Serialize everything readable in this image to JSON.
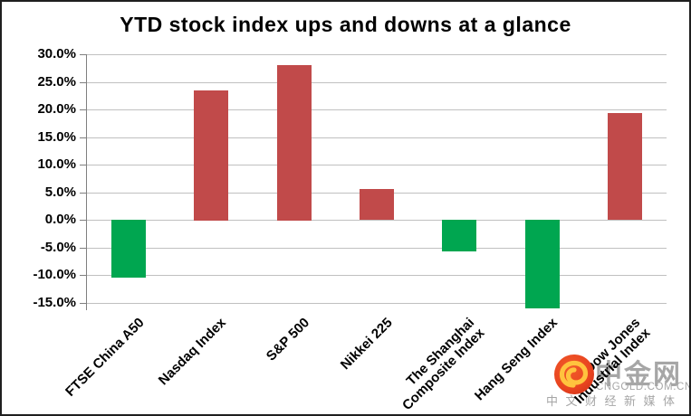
{
  "window": {
    "background": "#ffffff",
    "border_color": "#1f1f1f"
  },
  "chart_data": {
    "type": "bar",
    "title": "YTD stock index ups and downs at a glance",
    "categories": [
      "FTSE China A50",
      "Nasdaq Index",
      "S&P 500",
      "Nikkei 225",
      "The Shanghai\nComposite Index",
      "Hang Seng Index",
      "Dow Jones\nIndustrial Index"
    ],
    "values": [
      -10.5,
      23.5,
      28.1,
      5.6,
      -5.7,
      -16.0,
      19.3
    ],
    "unit": "%",
    "xlabel": "",
    "ylabel": "",
    "y_ticks": [
      30,
      25,
      20,
      15,
      10,
      5,
      0,
      -5,
      -10,
      -15
    ],
    "y_tick_format": "one-decimal-percent",
    "ylim": [
      -16.3,
      30
    ],
    "grid": true,
    "legend": false,
    "positive_color": "#C14A4A",
    "negative_color": "#00A650",
    "gridline_color": "#C0C0C0",
    "axis_color": "#808080"
  },
  "watermark": {
    "logo_icon": "cngold-swirl-logo",
    "brand": "中金网",
    "domain": "CNGOLD.COM.CN",
    "tagline": "中文财经新媒体",
    "text_color": "#A6A6A6"
  }
}
